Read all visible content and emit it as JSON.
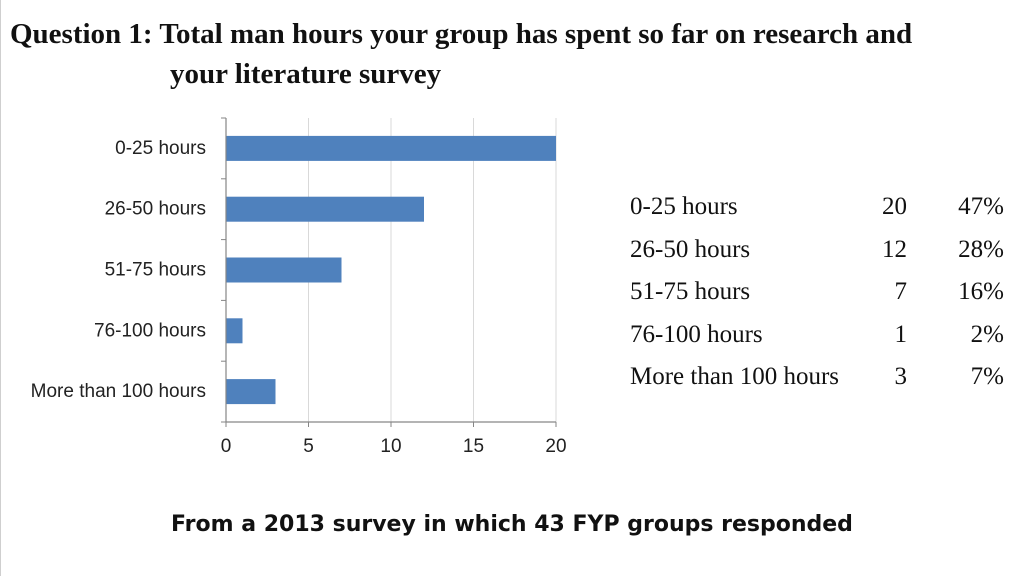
{
  "title_line1": "Question 1: Total man hours your group has spent so far on research and",
  "title_line2": "your literature survey",
  "colors": {
    "bar": "#4f81bd",
    "axis": "#868686",
    "grid": "#d9d9d9"
  },
  "chart_data": {
    "type": "bar",
    "orientation": "horizontal",
    "categories": [
      "0-25 hours",
      "26-50 hours",
      "51-75 hours",
      "76-100 hours",
      "More than 100 hours"
    ],
    "values": [
      20,
      12,
      7,
      1,
      3
    ],
    "xlim": [
      0,
      20
    ],
    "xticks": [
      "0",
      "5",
      "10",
      "15",
      "20"
    ],
    "grid": "vertical",
    "legend": "none"
  },
  "table": {
    "rows": [
      {
        "label": "0-25 hours",
        "count": "20",
        "percent": "47%"
      },
      {
        "label": "26-50 hours",
        "count": "12",
        "percent": "28%"
      },
      {
        "label": "51-75 hours",
        "count": "7",
        "percent": "16%"
      },
      {
        "label": "76-100 hours",
        "count": "1",
        "percent": "2%"
      },
      {
        "label": "More than 100 hours",
        "count": "3",
        "percent": "7%"
      }
    ]
  },
  "footnote": "From a 2013 survey in which 43 FYP groups responded"
}
